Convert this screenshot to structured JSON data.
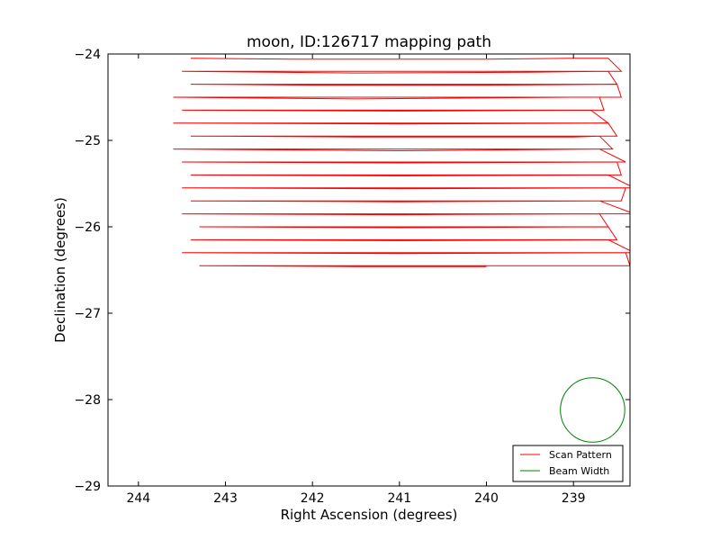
{
  "chart_data": {
    "type": "line",
    "title": "moon, ID:126717 mapping path",
    "xlabel": "Right Ascension (degrees)",
    "ylabel": "Declination (degrees)",
    "xlim": [
      244.35,
      238.35
    ],
    "ylim": [
      -29,
      -24
    ],
    "x_inverted": true,
    "xticks": [
      244,
      243,
      242,
      241,
      240,
      239
    ],
    "xtick_labels": [
      "244",
      "243",
      "242",
      "241",
      "240",
      "239"
    ],
    "yticks": [
      -24,
      -25,
      -26,
      -27,
      -28,
      -29
    ],
    "ytick_labels": [
      "−24",
      "−25",
      "−26",
      "−27",
      "−28",
      "−29"
    ],
    "grid": false,
    "legend_position": "lower-right",
    "series": [
      {
        "name": "Scan Pattern",
        "color": "#ff0000",
        "style": "line",
        "x": [
          243.4,
          242.2,
          241.0,
          240.0,
          239.0,
          238.6,
          238.45,
          243.5,
          241.5,
          239.5,
          238.6,
          238.5,
          243.4,
          242.0,
          240.0,
          238.5,
          238.45,
          243.6,
          241.5,
          239.0,
          238.7,
          238.65,
          243.5,
          241.0,
          238.8,
          238.6,
          243.6,
          241.0,
          238.6,
          238.5,
          243.4,
          241.5,
          239.0,
          238.7,
          238.55,
          243.6,
          241.0,
          238.7,
          238.4,
          243.5,
          241.0,
          238.5,
          238.45,
          243.4,
          241.0,
          238.6,
          238.3,
          243.5,
          241.0,
          238.4,
          238.45,
          243.4,
          241.0,
          238.7,
          238.3,
          243.5,
          241.0,
          238.7,
          238.6,
          243.3,
          241.0,
          238.6,
          238.5,
          243.4,
          241.0,
          238.6,
          238.3,
          243.5,
          241.0,
          238.4,
          238.35,
          243.3,
          241.5,
          240.0
        ],
        "y": [
          -24.05,
          -24.06,
          -24.06,
          -24.06,
          -24.05,
          -24.05,
          -24.2,
          -24.2,
          -24.22,
          -24.21,
          -24.2,
          -24.35,
          -24.35,
          -24.36,
          -24.36,
          -24.35,
          -24.5,
          -24.5,
          -24.52,
          -24.5,
          -24.5,
          -24.65,
          -24.65,
          -24.66,
          -24.65,
          -24.8,
          -24.8,
          -24.81,
          -24.8,
          -24.95,
          -24.95,
          -24.96,
          -24.96,
          -24.95,
          -25.1,
          -25.1,
          -25.12,
          -25.1,
          -25.25,
          -25.25,
          -25.26,
          -25.25,
          -25.4,
          -25.4,
          -25.41,
          -25.4,
          -25.55,
          -25.55,
          -25.56,
          -25.55,
          -25.7,
          -25.7,
          -25.71,
          -25.7,
          -25.85,
          -25.85,
          -25.86,
          -25.85,
          -26.0,
          -26.0,
          -26.01,
          -26.0,
          -26.15,
          -26.15,
          -26.16,
          -26.15,
          -26.3,
          -26.3,
          -26.31,
          -26.3,
          -26.45,
          -26.45,
          -26.46,
          -26.46
        ]
      },
      {
        "name": "Beam Width",
        "color": "#008000",
        "style": "circle",
        "center": [
          238.78,
          -28.12
        ],
        "radius_deg": 0.37
      }
    ]
  }
}
